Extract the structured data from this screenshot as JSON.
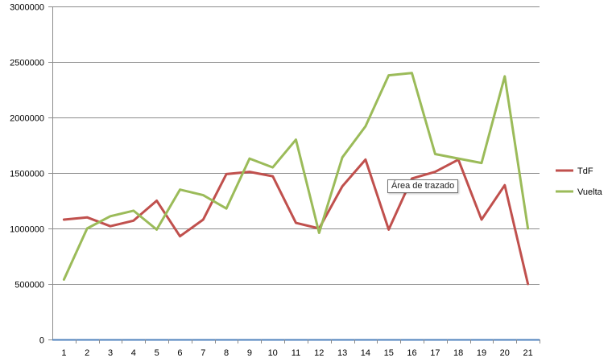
{
  "chart_data": {
    "type": "line",
    "title": "",
    "xlabel": "",
    "ylabel": "",
    "categories": [
      "1",
      "2",
      "3",
      "4",
      "5",
      "6",
      "7",
      "8",
      "9",
      "10",
      "11",
      "12",
      "13",
      "14",
      "15",
      "16",
      "17",
      "18",
      "19",
      "20",
      "21"
    ],
    "ylim": [
      0,
      3000000
    ],
    "yticks": [
      0,
      500000,
      1000000,
      1500000,
      2000000,
      2500000,
      3000000
    ],
    "ytick_labels": [
      "0",
      "500000",
      "1000000",
      "1500000",
      "2000000",
      "2500000",
      "3000000"
    ],
    "grid": true,
    "legend_position": "right",
    "series": [
      {
        "name": "TdF",
        "color": "#c0504d",
        "values": [
          1080000,
          1100000,
          1020000,
          1070000,
          1250000,
          930000,
          1080000,
          1490000,
          1510000,
          1470000,
          1050000,
          1000000,
          1380000,
          1620000,
          990000,
          1450000,
          1510000,
          1620000,
          1080000,
          1390000,
          500000
        ]
      },
      {
        "name": "Vuelta",
        "color": "#9bbb59",
        "values": [
          540000,
          1000000,
          1110000,
          1160000,
          990000,
          1350000,
          1300000,
          1180000,
          1630000,
          1550000,
          1800000,
          960000,
          1640000,
          1920000,
          2380000,
          2400000,
          1670000,
          1630000,
          1590000,
          2370000,
          1000000
        ]
      }
    ],
    "baseline_color": "#4f81bd"
  },
  "tooltip": {
    "text": "Área de trazado"
  }
}
